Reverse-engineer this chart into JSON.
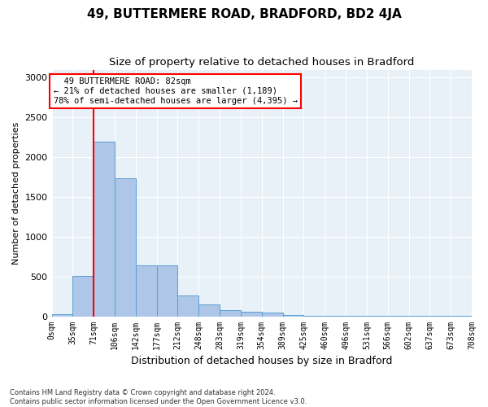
{
  "title": "49, BUTTERMERE ROAD, BRADFORD, BD2 4JA",
  "subtitle": "Size of property relative to detached houses in Bradford",
  "xlabel": "Distribution of detached houses by size in Bradford",
  "ylabel": "Number of detached properties",
  "bin_labels": [
    "0sqm",
    "35sqm",
    "71sqm",
    "106sqm",
    "142sqm",
    "177sqm",
    "212sqm",
    "248sqm",
    "283sqm",
    "319sqm",
    "354sqm",
    "389sqm",
    "425sqm",
    "460sqm",
    "496sqm",
    "531sqm",
    "566sqm",
    "602sqm",
    "637sqm",
    "673sqm",
    "708sqm"
  ],
  "bar_heights": [
    30,
    510,
    2200,
    1730,
    640,
    640,
    260,
    145,
    80,
    55,
    45,
    15,
    10,
    5,
    5,
    5,
    3,
    3,
    2,
    2
  ],
  "bar_color": "#aec6e8",
  "bar_edge_color": "#5a9fd4",
  "vline_x": 2,
  "vline_color": "red",
  "annotation_text": "  49 BUTTERMERE ROAD: 82sqm\n← 21% of detached houses are smaller (1,189)\n78% of semi-detached houses are larger (4,395) →",
  "annotation_box_color": "white",
  "annotation_box_edge": "red",
  "ylim": [
    0,
    3100
  ],
  "yticks": [
    0,
    500,
    1000,
    1500,
    2000,
    2500,
    3000
  ],
  "background_color": "#e8f0f8",
  "footer_line1": "Contains HM Land Registry data © Crown copyright and database right 2024.",
  "footer_line2": "Contains public sector information licensed under the Open Government Licence v3.0.",
  "title_fontsize": 11,
  "subtitle_fontsize": 9.5,
  "ylabel_fontsize": 8,
  "xlabel_fontsize": 9
}
